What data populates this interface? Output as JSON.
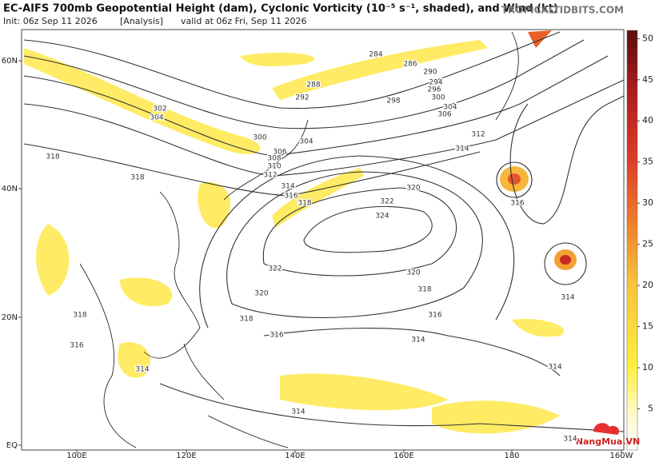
{
  "header": {
    "title": "EC-AIFS 700mb Geopotential Height (dam), Cyclonic Vorticity (10⁻⁵ s⁻¹, shaded), and Wind (kt)",
    "init": "Init: 06z Sep 11 2026",
    "run": "[Analysis]",
    "valid": "valid at 06z Fri, Sep 11 2026",
    "site": "TROPICALTIDBITS.COM"
  },
  "map": {
    "longitude_labels": [
      "100E",
      "120E",
      "140E",
      "160E",
      "180",
      "160W"
    ],
    "latitude_labels": [
      "60N",
      "40N",
      "20N",
      "EQ"
    ],
    "contour_labels": [
      284,
      286,
      288,
      290,
      292,
      294,
      296,
      298,
      300,
      302,
      304,
      304,
      304,
      306,
      306,
      308,
      310,
      312,
      312,
      314,
      314,
      316,
      318,
      318,
      318,
      300,
      320,
      322,
      324,
      322,
      320,
      318,
      320,
      318,
      316,
      316,
      316,
      314,
      314,
      314,
      314,
      314,
      318,
      316,
      314
    ]
  },
  "colorbar": {
    "ticks": [
      5,
      10,
      15,
      20,
      25,
      30,
      35,
      40,
      45,
      50
    ],
    "range": [
      0,
      51
    ]
  },
  "watermark": "NangMua.VN"
}
